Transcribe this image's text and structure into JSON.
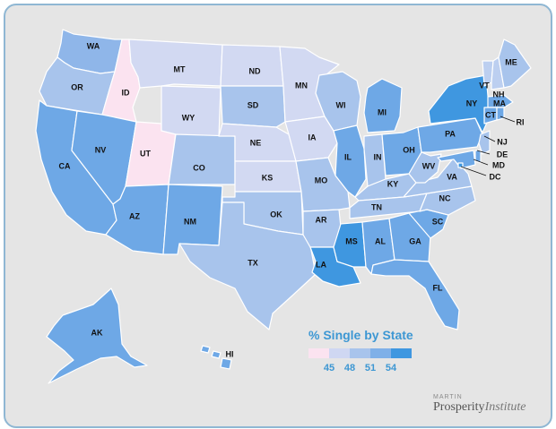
{
  "colors": {
    "c45": "#fbe3f0",
    "c46": "#d2d9f2",
    "c48": "#bccff0",
    "c49": "#a8c4ec",
    "c51": "#8fb6e9",
    "c52": "#6ea8e6",
    "c54": "#3f97e0"
  },
  "legend": {
    "title": "% Single by State",
    "swatches": [
      "#fbe3f0",
      "#cfd7f2",
      "#a8c4ec",
      "#7fb0e8",
      "#3f97e0"
    ],
    "ticks": [
      "45",
      "48",
      "51",
      "54"
    ]
  },
  "logo": {
    "top": "MARTIN",
    "main": "Prosperity",
    "italic": "Institute"
  },
  "states": [
    {
      "abbr": "WA",
      "tier": "c51"
    },
    {
      "abbr": "OR",
      "tier": "c49"
    },
    {
      "abbr": "CA",
      "tier": "c52"
    },
    {
      "abbr": "ID",
      "tier": "c45"
    },
    {
      "abbr": "NV",
      "tier": "c52"
    },
    {
      "abbr": "UT",
      "tier": "c45"
    },
    {
      "abbr": "AZ",
      "tier": "c52"
    },
    {
      "abbr": "MT",
      "tier": "c46"
    },
    {
      "abbr": "WY",
      "tier": "c46"
    },
    {
      "abbr": "CO",
      "tier": "c49"
    },
    {
      "abbr": "NM",
      "tier": "c52"
    },
    {
      "abbr": "ND",
      "tier": "c46"
    },
    {
      "abbr": "SD",
      "tier": "c49"
    },
    {
      "abbr": "NE",
      "tier": "c46"
    },
    {
      "abbr": "KS",
      "tier": "c46"
    },
    {
      "abbr": "OK",
      "tier": "c49"
    },
    {
      "abbr": "TX",
      "tier": "c49"
    },
    {
      "abbr": "MN",
      "tier": "c46"
    },
    {
      "abbr": "IA",
      "tier": "c46"
    },
    {
      "abbr": "MO",
      "tier": "c49"
    },
    {
      "abbr": "AR",
      "tier": "c49"
    },
    {
      "abbr": "LA",
      "tier": "c54"
    },
    {
      "abbr": "WI",
      "tier": "c49"
    },
    {
      "abbr": "IL",
      "tier": "c52"
    },
    {
      "abbr": "MS",
      "tier": "c54"
    },
    {
      "abbr": "MI",
      "tier": "c52"
    },
    {
      "abbr": "IN",
      "tier": "c49"
    },
    {
      "abbr": "OH",
      "tier": "c52"
    },
    {
      "abbr": "KY",
      "tier": "c49"
    },
    {
      "abbr": "TN",
      "tier": "c49"
    },
    {
      "abbr": "AL",
      "tier": "c52"
    },
    {
      "abbr": "GA",
      "tier": "c52"
    },
    {
      "abbr": "FL",
      "tier": "c52"
    },
    {
      "abbr": "SC",
      "tier": "c52"
    },
    {
      "abbr": "NC",
      "tier": "c49"
    },
    {
      "abbr": "VA",
      "tier": "c49"
    },
    {
      "abbr": "WV",
      "tier": "c49"
    },
    {
      "abbr": "PA",
      "tier": "c52"
    },
    {
      "abbr": "NY",
      "tier": "c54"
    },
    {
      "abbr": "VT",
      "tier": "c48"
    },
    {
      "abbr": "NH",
      "tier": "c48"
    },
    {
      "abbr": "ME",
      "tier": "c49"
    },
    {
      "abbr": "MA",
      "tier": "c52"
    },
    {
      "abbr": "CT",
      "tier": "c52"
    },
    {
      "abbr": "RI",
      "tier": "c52"
    },
    {
      "abbr": "NJ",
      "tier": "c49"
    },
    {
      "abbr": "DE",
      "tier": "c52"
    },
    {
      "abbr": "MD",
      "tier": "c52"
    },
    {
      "abbr": "DC",
      "tier": "c54"
    },
    {
      "abbr": "AK",
      "tier": "c52"
    },
    {
      "abbr": "HI",
      "tier": "c52"
    }
  ]
}
